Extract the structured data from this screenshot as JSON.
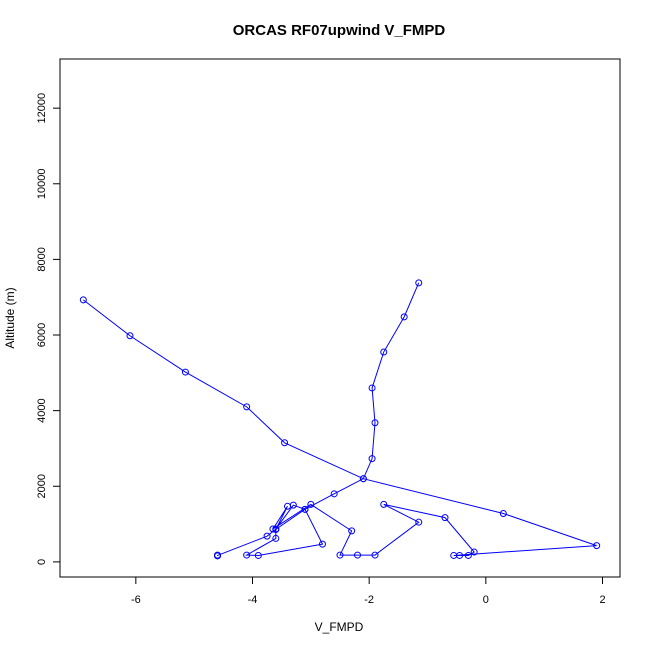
{
  "chart_data": {
    "type": "line",
    "title": "ORCAS RF07upwind V_FMPD",
    "xlabel": "V_FMPD",
    "ylabel": "Altitude (m)",
    "xlim": [
      -7.3,
      2.3
    ],
    "ylim": [
      -400,
      13300
    ],
    "x_ticks": [
      -6,
      -4,
      -2,
      0,
      2
    ],
    "y_ticks": [
      0,
      2000,
      4000,
      6000,
      8000,
      10000,
      12000
    ],
    "x_tick_labels": [
      "-6",
      "-4",
      "-2",
      "0",
      "2"
    ],
    "y_tick_labels": [
      "0",
      "2000",
      "4000",
      "6000",
      "8000",
      "10000",
      "12000"
    ],
    "grid": false,
    "series": [
      {
        "color": "#0000ff",
        "marker": "open-circle",
        "points": [
          {
            "x": -4.6,
            "y": 170
          },
          {
            "x": -4.6,
            "y": 160
          },
          {
            "x": -4.6,
            "y": 180
          },
          {
            "x": -4.6,
            "y": 160
          },
          {
            "x": -4.6,
            "y": 170
          },
          {
            "x": -3.75,
            "y": 680
          },
          {
            "x": -3.6,
            "y": 870
          },
          {
            "x": -3.3,
            "y": 1500
          },
          {
            "x": -3.1,
            "y": 1390
          },
          {
            "x": -2.8,
            "y": 470
          },
          {
            "x": -3.9,
            "y": 170
          },
          {
            "x": -4.1,
            "y": 180
          },
          {
            "x": -3.6,
            "y": 620
          },
          {
            "x": -3.6,
            "y": 860
          },
          {
            "x": -3.4,
            "y": 1470
          },
          {
            "x": -3.65,
            "y": 870
          },
          {
            "x": -3.0,
            "y": 1520
          },
          {
            "x": -2.3,
            "y": 820
          },
          {
            "x": -2.5,
            "y": 180
          },
          {
            "x": -2.2,
            "y": 180
          },
          {
            "x": -1.9,
            "y": 180
          },
          {
            "x": -1.15,
            "y": 1050
          },
          {
            "x": -1.75,
            "y": 1520
          },
          {
            "x": -0.7,
            "y": 1170
          },
          {
            "x": -0.2,
            "y": 260
          },
          {
            "x": -0.3,
            "y": 170
          },
          {
            "x": -0.45,
            "y": 170
          },
          {
            "x": -0.55,
            "y": 170
          },
          {
            "x": 1.9,
            "y": 430
          },
          {
            "x": 0.3,
            "y": 1280
          },
          {
            "x": -2.1,
            "y": 2200
          },
          {
            "x": -3.45,
            "y": 3150
          },
          {
            "x": -4.1,
            "y": 4100
          },
          {
            "x": -5.15,
            "y": 5020
          },
          {
            "x": -6.1,
            "y": 5980
          },
          {
            "x": -6.9,
            "y": 6930
          }
        ]
      },
      {
        "color": "#0000ff",
        "marker": "open-circle",
        "points": [
          {
            "x": -3.6,
            "y": 860
          },
          {
            "x": -3.1,
            "y": 1390
          },
          {
            "x": -2.6,
            "y": 1800
          },
          {
            "x": -2.1,
            "y": 2200
          },
          {
            "x": -1.95,
            "y": 2730
          },
          {
            "x": -1.9,
            "y": 3680
          },
          {
            "x": -1.95,
            "y": 4600
          },
          {
            "x": -1.75,
            "y": 5550
          },
          {
            "x": -1.4,
            "y": 6480
          },
          {
            "x": -1.15,
            "y": 7380
          }
        ]
      }
    ]
  }
}
